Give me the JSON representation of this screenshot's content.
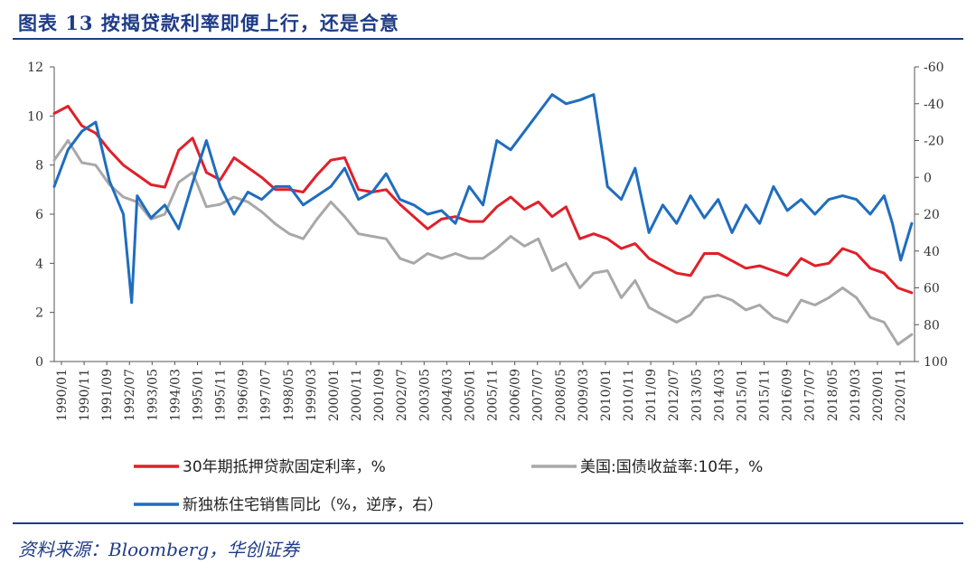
{
  "header": {
    "title": "图表 13   按揭贷款利率即便上行，还是合意"
  },
  "footer": {
    "source": "资料来源：Bloomberg，华创证券"
  },
  "chart_data": {
    "type": "line",
    "title": "按揭贷款利率即便上行，还是合意",
    "x_tick_labels": [
      "1990/01",
      "1990/11",
      "1991/09",
      "1992/07",
      "1993/05",
      "1994/03",
      "1995/01",
      "1995/11",
      "1996/09",
      "1997/07",
      "1998/05",
      "1999/03",
      "2000/01",
      "2000/11",
      "2001/09",
      "2002/07",
      "2003/05",
      "2004/03",
      "2005/01",
      "2005/11",
      "2006/09",
      "2007/07",
      "2008/05",
      "2009/03",
      "2010/01",
      "2010/11",
      "2011/09",
      "2012/07",
      "2013/05",
      "2014/03",
      "2015/01",
      "2015/11",
      "2016/09",
      "2017/07",
      "2018/05",
      "2019/03",
      "2020/01",
      "2020/11"
    ],
    "left_axis": {
      "min": 0,
      "max": 12,
      "ticks": [
        "0",
        "2",
        "4",
        "6",
        "8",
        "10",
        "12"
      ]
    },
    "right_axis": {
      "min": -60,
      "max": 100,
      "reversed": true,
      "ticks": [
        "-60",
        "-40",
        "-20",
        "0",
        "20",
        "40",
        "60",
        "80",
        "100"
      ]
    },
    "series": [
      {
        "name": "30年期抵押贷款固定利率，%",
        "axis": "left",
        "color": "#e0202a",
        "x": [
          1990.0,
          1990.5,
          1991.0,
          1991.5,
          1992.0,
          1992.5,
          1993.0,
          1993.5,
          1994.0,
          1994.5,
          1995.0,
          1995.5,
          1996.0,
          1996.5,
          1997.0,
          1997.5,
          1998.0,
          1998.5,
          1999.0,
          1999.5,
          2000.0,
          2000.5,
          2001.0,
          2001.5,
          2002.0,
          2002.5,
          2003.0,
          2003.5,
          2004.0,
          2004.5,
          2005.0,
          2005.5,
          2006.0,
          2006.5,
          2007.0,
          2007.5,
          2008.0,
          2008.5,
          2009.0,
          2009.5,
          2010.0,
          2010.5,
          2011.0,
          2011.5,
          2012.0,
          2012.5,
          2013.0,
          2013.5,
          2014.0,
          2014.5,
          2015.0,
          2015.5,
          2016.0,
          2016.5,
          2017.0,
          2017.5,
          2018.0,
          2018.5,
          2019.0,
          2019.5,
          2020.0,
          2020.5,
          2021.0
        ],
        "values": [
          10.1,
          10.4,
          9.6,
          9.3,
          8.6,
          8.0,
          7.6,
          7.2,
          7.1,
          8.6,
          9.1,
          7.7,
          7.4,
          8.3,
          7.9,
          7.5,
          7.0,
          7.0,
          6.9,
          7.6,
          8.2,
          8.3,
          7.0,
          6.9,
          7.0,
          6.4,
          5.9,
          5.4,
          5.8,
          5.9,
          5.7,
          5.7,
          6.3,
          6.7,
          6.2,
          6.5,
          5.9,
          6.3,
          5.0,
          5.2,
          5.0,
          4.6,
          4.8,
          4.2,
          3.9,
          3.6,
          3.5,
          4.4,
          4.4,
          4.1,
          3.8,
          3.9,
          3.7,
          3.5,
          4.2,
          3.9,
          4.0,
          4.6,
          4.4,
          3.8,
          3.6,
          3.0,
          2.8
        ]
      },
      {
        "name": "美国:国债收益率:10年，%",
        "axis": "left",
        "color": "#a8a8a8",
        "x": [
          1990.0,
          1990.5,
          1991.0,
          1991.5,
          1992.0,
          1992.5,
          1993.0,
          1993.5,
          1994.0,
          1994.5,
          1995.0,
          1995.5,
          1996.0,
          1996.5,
          1997.0,
          1997.5,
          1998.0,
          1998.5,
          1999.0,
          1999.5,
          2000.0,
          2000.5,
          2001.0,
          2001.5,
          2002.0,
          2002.5,
          2003.0,
          2003.5,
          2004.0,
          2004.5,
          2005.0,
          2005.5,
          2006.0,
          2006.5,
          2007.0,
          2007.5,
          2008.0,
          2008.5,
          2009.0,
          2009.5,
          2010.0,
          2010.5,
          2011.0,
          2011.5,
          2012.0,
          2012.5,
          2013.0,
          2013.5,
          2014.0,
          2014.5,
          2015.0,
          2015.5,
          2016.0,
          2016.5,
          2017.0,
          2017.5,
          2018.0,
          2018.5,
          2019.0,
          2019.5,
          2020.0,
          2020.5,
          2021.0
        ],
        "values": [
          8.2,
          9.0,
          8.1,
          8.0,
          7.2,
          6.7,
          6.5,
          5.8,
          6.0,
          7.3,
          7.7,
          6.3,
          6.4,
          6.7,
          6.5,
          6.1,
          5.6,
          5.2,
          5.0,
          5.8,
          6.5,
          5.9,
          5.2,
          5.1,
          5.0,
          4.2,
          4.0,
          4.4,
          4.2,
          4.4,
          4.2,
          4.2,
          4.6,
          5.1,
          4.7,
          5.0,
          3.7,
          4.0,
          3.0,
          3.6,
          3.7,
          2.6,
          3.3,
          2.2,
          1.9,
          1.6,
          1.9,
          2.6,
          2.7,
          2.5,
          2.1,
          2.3,
          1.8,
          1.6,
          2.5,
          2.3,
          2.6,
          3.0,
          2.6,
          1.8,
          1.6,
          0.7,
          1.1
        ]
      },
      {
        "name": "新独栋住宅销售同比（%，逆序，右）",
        "axis": "right",
        "color": "#1f6dbf",
        "x": [
          1990.0,
          1990.5,
          1991.0,
          1991.5,
          1992.0,
          1992.5,
          1992.8,
          1993.0,
          1993.5,
          1994.0,
          1994.5,
          1995.0,
          1995.5,
          1996.0,
          1996.5,
          1997.0,
          1997.5,
          1998.0,
          1998.5,
          1999.0,
          1999.5,
          2000.0,
          2000.5,
          2001.0,
          2001.5,
          2002.0,
          2002.5,
          2003.0,
          2003.5,
          2004.0,
          2004.5,
          2005.0,
          2005.5,
          2006.0,
          2006.5,
          2007.0,
          2007.5,
          2008.0,
          2008.5,
          2009.0,
          2009.5,
          2010.0,
          2010.5,
          2011.0,
          2011.5,
          2012.0,
          2012.5,
          2013.0,
          2013.5,
          2014.0,
          2014.5,
          2015.0,
          2015.5,
          2016.0,
          2016.5,
          2017.0,
          2017.5,
          2018.0,
          2018.5,
          2019.0,
          2019.5,
          2020.0,
          2020.3,
          2020.6,
          2021.0
        ],
        "values": [
          5,
          -15,
          -25,
          -30,
          2,
          20,
          68,
          10,
          22,
          15,
          28,
          3,
          -20,
          5,
          20,
          8,
          12,
          5,
          5,
          15,
          10,
          5,
          -5,
          12,
          8,
          -2,
          12,
          15,
          20,
          18,
          25,
          5,
          15,
          -20,
          -15,
          -25,
          -35,
          -45,
          -40,
          -42,
          -45,
          5,
          12,
          -5,
          30,
          15,
          25,
          10,
          22,
          12,
          30,
          15,
          25,
          5,
          18,
          12,
          20,
          12,
          10,
          12,
          20,
          10,
          25,
          45,
          25
        ]
      }
    ],
    "legend": [
      {
        "label": "30年期抵押贷款固定利率，%",
        "color": "#e0202a"
      },
      {
        "label": "美国:国债收益率:10年，%",
        "color": "#a8a8a8"
      },
      {
        "label": "新独栋住宅销售同比（%，逆序，右）",
        "color": "#1f6dbf"
      }
    ],
    "legend_position": "bottom"
  }
}
